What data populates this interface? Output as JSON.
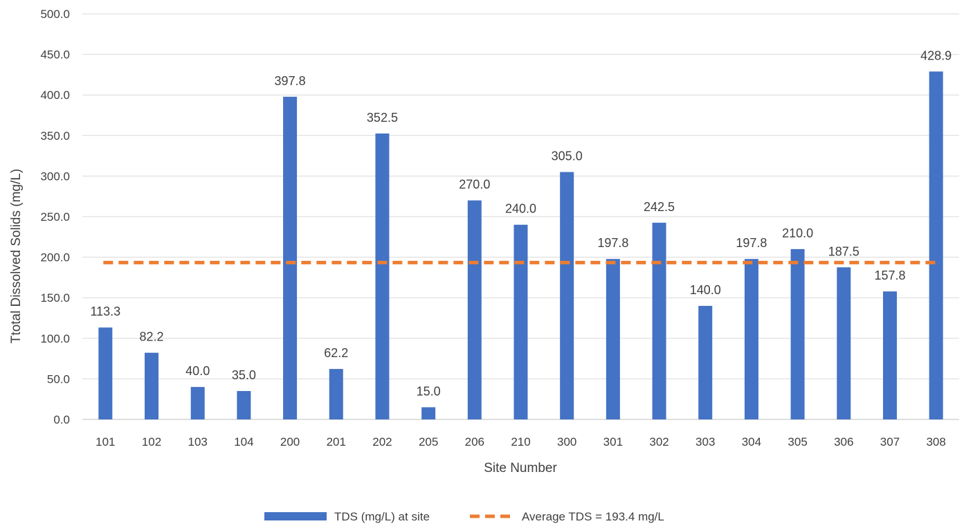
{
  "chart_data": {
    "type": "bar",
    "categories": [
      "101",
      "102",
      "103",
      "104",
      "200",
      "201",
      "202",
      "205",
      "206",
      "210",
      "300",
      "301",
      "302",
      "303",
      "304",
      "305",
      "306",
      "307",
      "308"
    ],
    "series": [
      {
        "name": "TDS (mg/L) at site",
        "type": "bar",
        "color": "#4472C4",
        "values": [
          113.3,
          82.2,
          40.0,
          35.0,
          397.8,
          62.2,
          352.5,
          15.0,
          270.0,
          240.0,
          305.0,
          197.8,
          242.5,
          140.0,
          197.8,
          210.0,
          187.5,
          157.8,
          428.9
        ],
        "data_labels": [
          "113.3",
          "82.2",
          "40.0",
          "35.0",
          "397.8",
          "62.2",
          "352.5",
          "15.0",
          "270.0",
          "240.0",
          "305.0",
          "197.8",
          "242.5",
          "140.0",
          "197.8",
          "210.0",
          "187.5",
          "157.8",
          "428.9"
        ]
      },
      {
        "name": "Average TDS = 193.4 mg/L",
        "type": "line",
        "style": "dashed",
        "color": "#ED7D31",
        "value": 193.4
      }
    ],
    "title": "",
    "xlabel": "Site Number",
    "ylabel": "Ttotal Dissolved Solids (mg/L)",
    "ylim": [
      0,
      500
    ],
    "yticks": [
      "0.0",
      "50.0",
      "100.0",
      "150.0",
      "200.0",
      "250.0",
      "300.0",
      "350.0",
      "400.0",
      "450.0",
      "500.0"
    ],
    "grid": true,
    "legend_position": "bottom"
  }
}
